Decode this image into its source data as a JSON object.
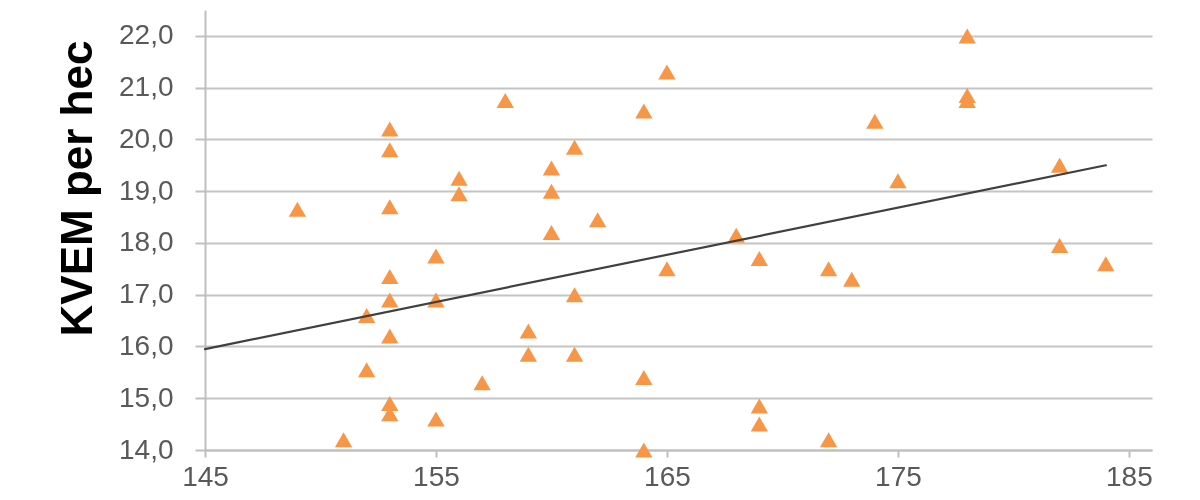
{
  "chart_data": {
    "type": "scatter",
    "ylabel": "KVEM per hec",
    "xlim": [
      145,
      186
    ],
    "xticks": [
      145,
      155,
      165,
      175,
      185
    ],
    "ylim": [
      14,
      22.5
    ],
    "yticks": [
      {
        "value": 14,
        "label": "14,0"
      },
      {
        "value": 15,
        "label": "15,0"
      },
      {
        "value": 16,
        "label": "16,0"
      },
      {
        "value": 17,
        "label": "17,0"
      },
      {
        "value": 18,
        "label": "18,0"
      },
      {
        "value": 19,
        "label": "19,0"
      },
      {
        "value": 20,
        "label": "20,0"
      },
      {
        "value": 21,
        "label": "21,0"
      },
      {
        "value": 22,
        "label": "22,0"
      }
    ],
    "grid": "y",
    "series": [
      {
        "type": "scatter",
        "color": "#f79646",
        "marker": "triangle",
        "x": [
          149,
          151,
          152,
          152,
          153,
          153,
          153,
          153,
          153,
          153,
          153,
          153,
          155,
          155,
          155,
          156,
          156,
          157,
          158,
          159,
          159,
          160,
          160,
          160,
          161,
          161,
          161,
          162,
          164,
          164,
          164,
          165,
          165,
          168,
          169,
          169,
          169,
          172,
          173,
          172,
          174,
          175,
          178,
          178,
          178,
          182,
          182,
          184
        ],
        "values": [
          18.65,
          14.2,
          16.6,
          15.55,
          20.2,
          19.8,
          18.7,
          17.35,
          16.9,
          16.2,
          14.9,
          14.7,
          17.75,
          16.9,
          14.6,
          19.25,
          18.95,
          15.3,
          20.75,
          16.3,
          15.85,
          19.45,
          19.0,
          18.2,
          19.85,
          17.0,
          15.85,
          18.45,
          20.55,
          15.4,
          14.0,
          21.3,
          17.5,
          18.15,
          17.7,
          14.85,
          14.5,
          17.5,
          17.3,
          14.2,
          20.35,
          19.2,
          22.0,
          20.85,
          20.75,
          19.5,
          17.95,
          17.6
        ]
      },
      {
        "type": "line",
        "color": "#404040",
        "line_style": "solid",
        "x": [
          145,
          184
        ],
        "values": [
          15.95,
          19.5
        ]
      }
    ]
  }
}
